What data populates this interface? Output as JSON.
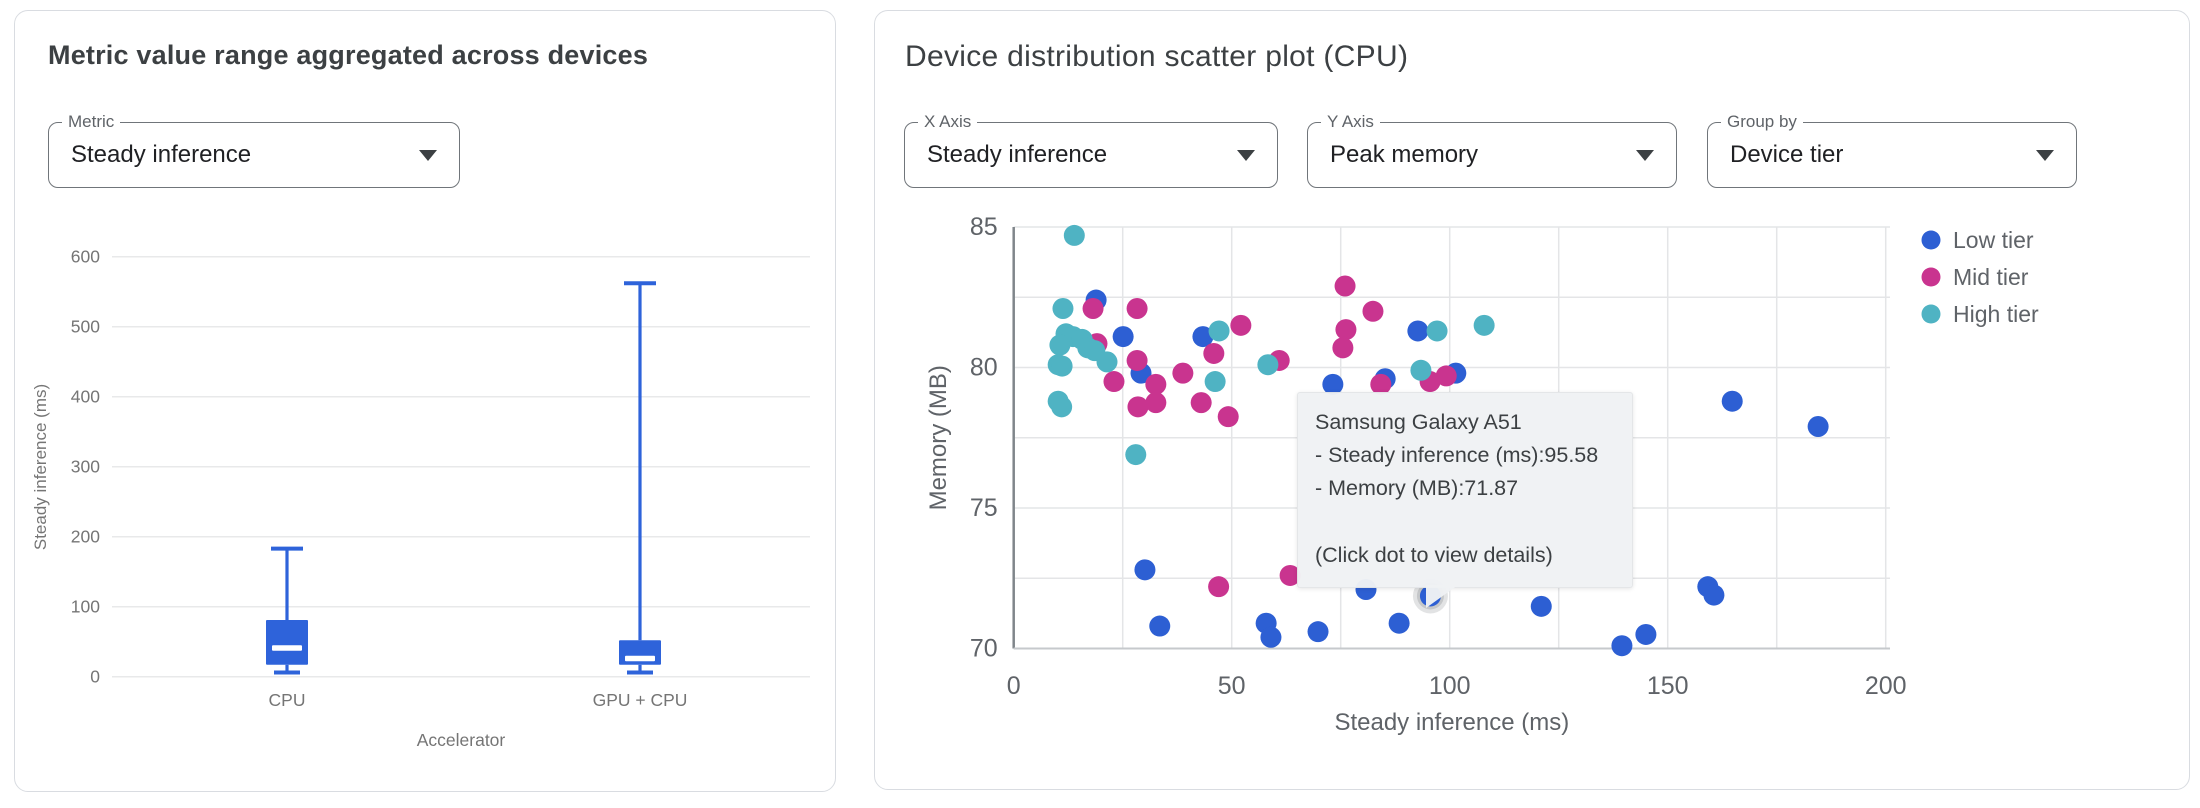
{
  "left_panel": {
    "title": "Metric value range aggregated across devices",
    "metric_select": {
      "label": "Metric",
      "value": "Steady inference"
    }
  },
  "right_panel": {
    "title": "Device distribution scatter plot (CPU)",
    "x_axis_select": {
      "label": "X Axis",
      "value": "Steady inference"
    },
    "y_axis_select": {
      "label": "Y Axis",
      "value": "Peak memory"
    },
    "group_by_select": {
      "label": "Group by",
      "value": "Device tier"
    },
    "tooltip": {
      "title": "Samsung Galaxy A51",
      "line1": "- Steady inference (ms):95.58",
      "line2": "- Memory (MB):71.87",
      "hint": "(Click dot to view details)"
    }
  },
  "chart_data": [
    {
      "type": "boxplot",
      "title": "Metric value range aggregated across devices",
      "xlabel": "Accelerator",
      "ylabel": "Steady inference (ms)",
      "categories": [
        "CPU",
        "GPU + CPU"
      ],
      "yticks": [
        0,
        100,
        200,
        300,
        400,
        500,
        600
      ],
      "ylim": [
        0,
        620
      ],
      "grid": true,
      "color": "#2e63da",
      "series": [
        {
          "category": "CPU",
          "min": 6,
          "q1": 17,
          "median": 41,
          "q3": 81,
          "max": 183
        },
        {
          "category": "GPU + CPU",
          "min": 6,
          "q1": 17,
          "median": 26,
          "q3": 52,
          "max": 562
        }
      ]
    },
    {
      "type": "scatter",
      "xlabel": "Steady inference (ms)",
      "ylabel": "Memory (MB)",
      "xticks": [
        0,
        50,
        100,
        150,
        200
      ],
      "yticks": [
        70,
        75,
        80,
        85
      ],
      "xlim": [
        0,
        200
      ],
      "ylim": [
        70,
        85
      ],
      "grid": true,
      "legend_position": "right",
      "series": [
        {
          "name": "Low tier",
          "color": "#2d5fd3",
          "points": [
            [
              18.9,
              82.4
            ],
            [
              25.1,
              81.1
            ],
            [
              29.2,
              79.8
            ],
            [
              43.4,
              81.1
            ],
            [
              73.2,
              79.4
            ],
            [
              85.2,
              79.6
            ],
            [
              92.7,
              81.3
            ],
            [
              101.4,
              79.8
            ],
            [
              30.1,
              72.8
            ],
            [
              33.5,
              70.8
            ],
            [
              57.9,
              70.9
            ],
            [
              59.0,
              70.4
            ],
            [
              69.8,
              70.6
            ],
            [
              80.8,
              72.1
            ],
            [
              88.4,
              70.9
            ],
            [
              95.58,
              71.87
            ],
            [
              121.0,
              71.5
            ],
            [
              139.5,
              70.1
            ],
            [
              145.0,
              70.5
            ],
            [
              159.2,
              72.2
            ],
            [
              160.6,
              71.9
            ],
            [
              164.8,
              78.8
            ],
            [
              184.5,
              77.9
            ]
          ]
        },
        {
          "name": "Mid tier",
          "color": "#c9348f",
          "points": [
            [
              18.2,
              82.1
            ],
            [
              28.3,
              82.1
            ],
            [
              19.1,
              80.85
            ],
            [
              23.0,
              79.5
            ],
            [
              28.3,
              80.25
            ],
            [
              32.6,
              79.4
            ],
            [
              38.8,
              79.8
            ],
            [
              28.5,
              78.6
            ],
            [
              32.6,
              78.75
            ],
            [
              43.0,
              78.75
            ],
            [
              45.9,
              80.5
            ],
            [
              49.2,
              78.25
            ],
            [
              52.1,
              81.5
            ],
            [
              60.9,
              80.25
            ],
            [
              76.0,
              82.9
            ],
            [
              75.5,
              80.7
            ],
            [
              76.2,
              81.35
            ],
            [
              82.4,
              82.0
            ],
            [
              84.2,
              79.4
            ],
            [
              95.5,
              79.5
            ],
            [
              99.2,
              79.7
            ],
            [
              47.0,
              72.2
            ],
            [
              63.4,
              72.6
            ]
          ]
        },
        {
          "name": "High tier",
          "color": "#4fb3c3",
          "points": [
            [
              13.9,
              84.7
            ],
            [
              11.3,
              82.1
            ],
            [
              12.0,
              81.2
            ],
            [
              13.6,
              81.1
            ],
            [
              15.7,
              81.0
            ],
            [
              17.0,
              80.7
            ],
            [
              18.6,
              80.6
            ],
            [
              10.6,
              80.8
            ],
            [
              10.2,
              80.1
            ],
            [
              11.1,
              80.05
            ],
            [
              21.4,
              80.2
            ],
            [
              10.2,
              78.8
            ],
            [
              11.0,
              78.6
            ],
            [
              28.0,
              76.9
            ],
            [
              47.1,
              81.3
            ],
            [
              46.2,
              79.5
            ],
            [
              58.3,
              80.1
            ],
            [
              93.4,
              79.9
            ],
            [
              97.1,
              81.3
            ],
            [
              107.9,
              81.5
            ]
          ]
        }
      ],
      "highlighted_point": {
        "series": "Low tier",
        "x": 95.58,
        "y": 71.87
      }
    }
  ]
}
